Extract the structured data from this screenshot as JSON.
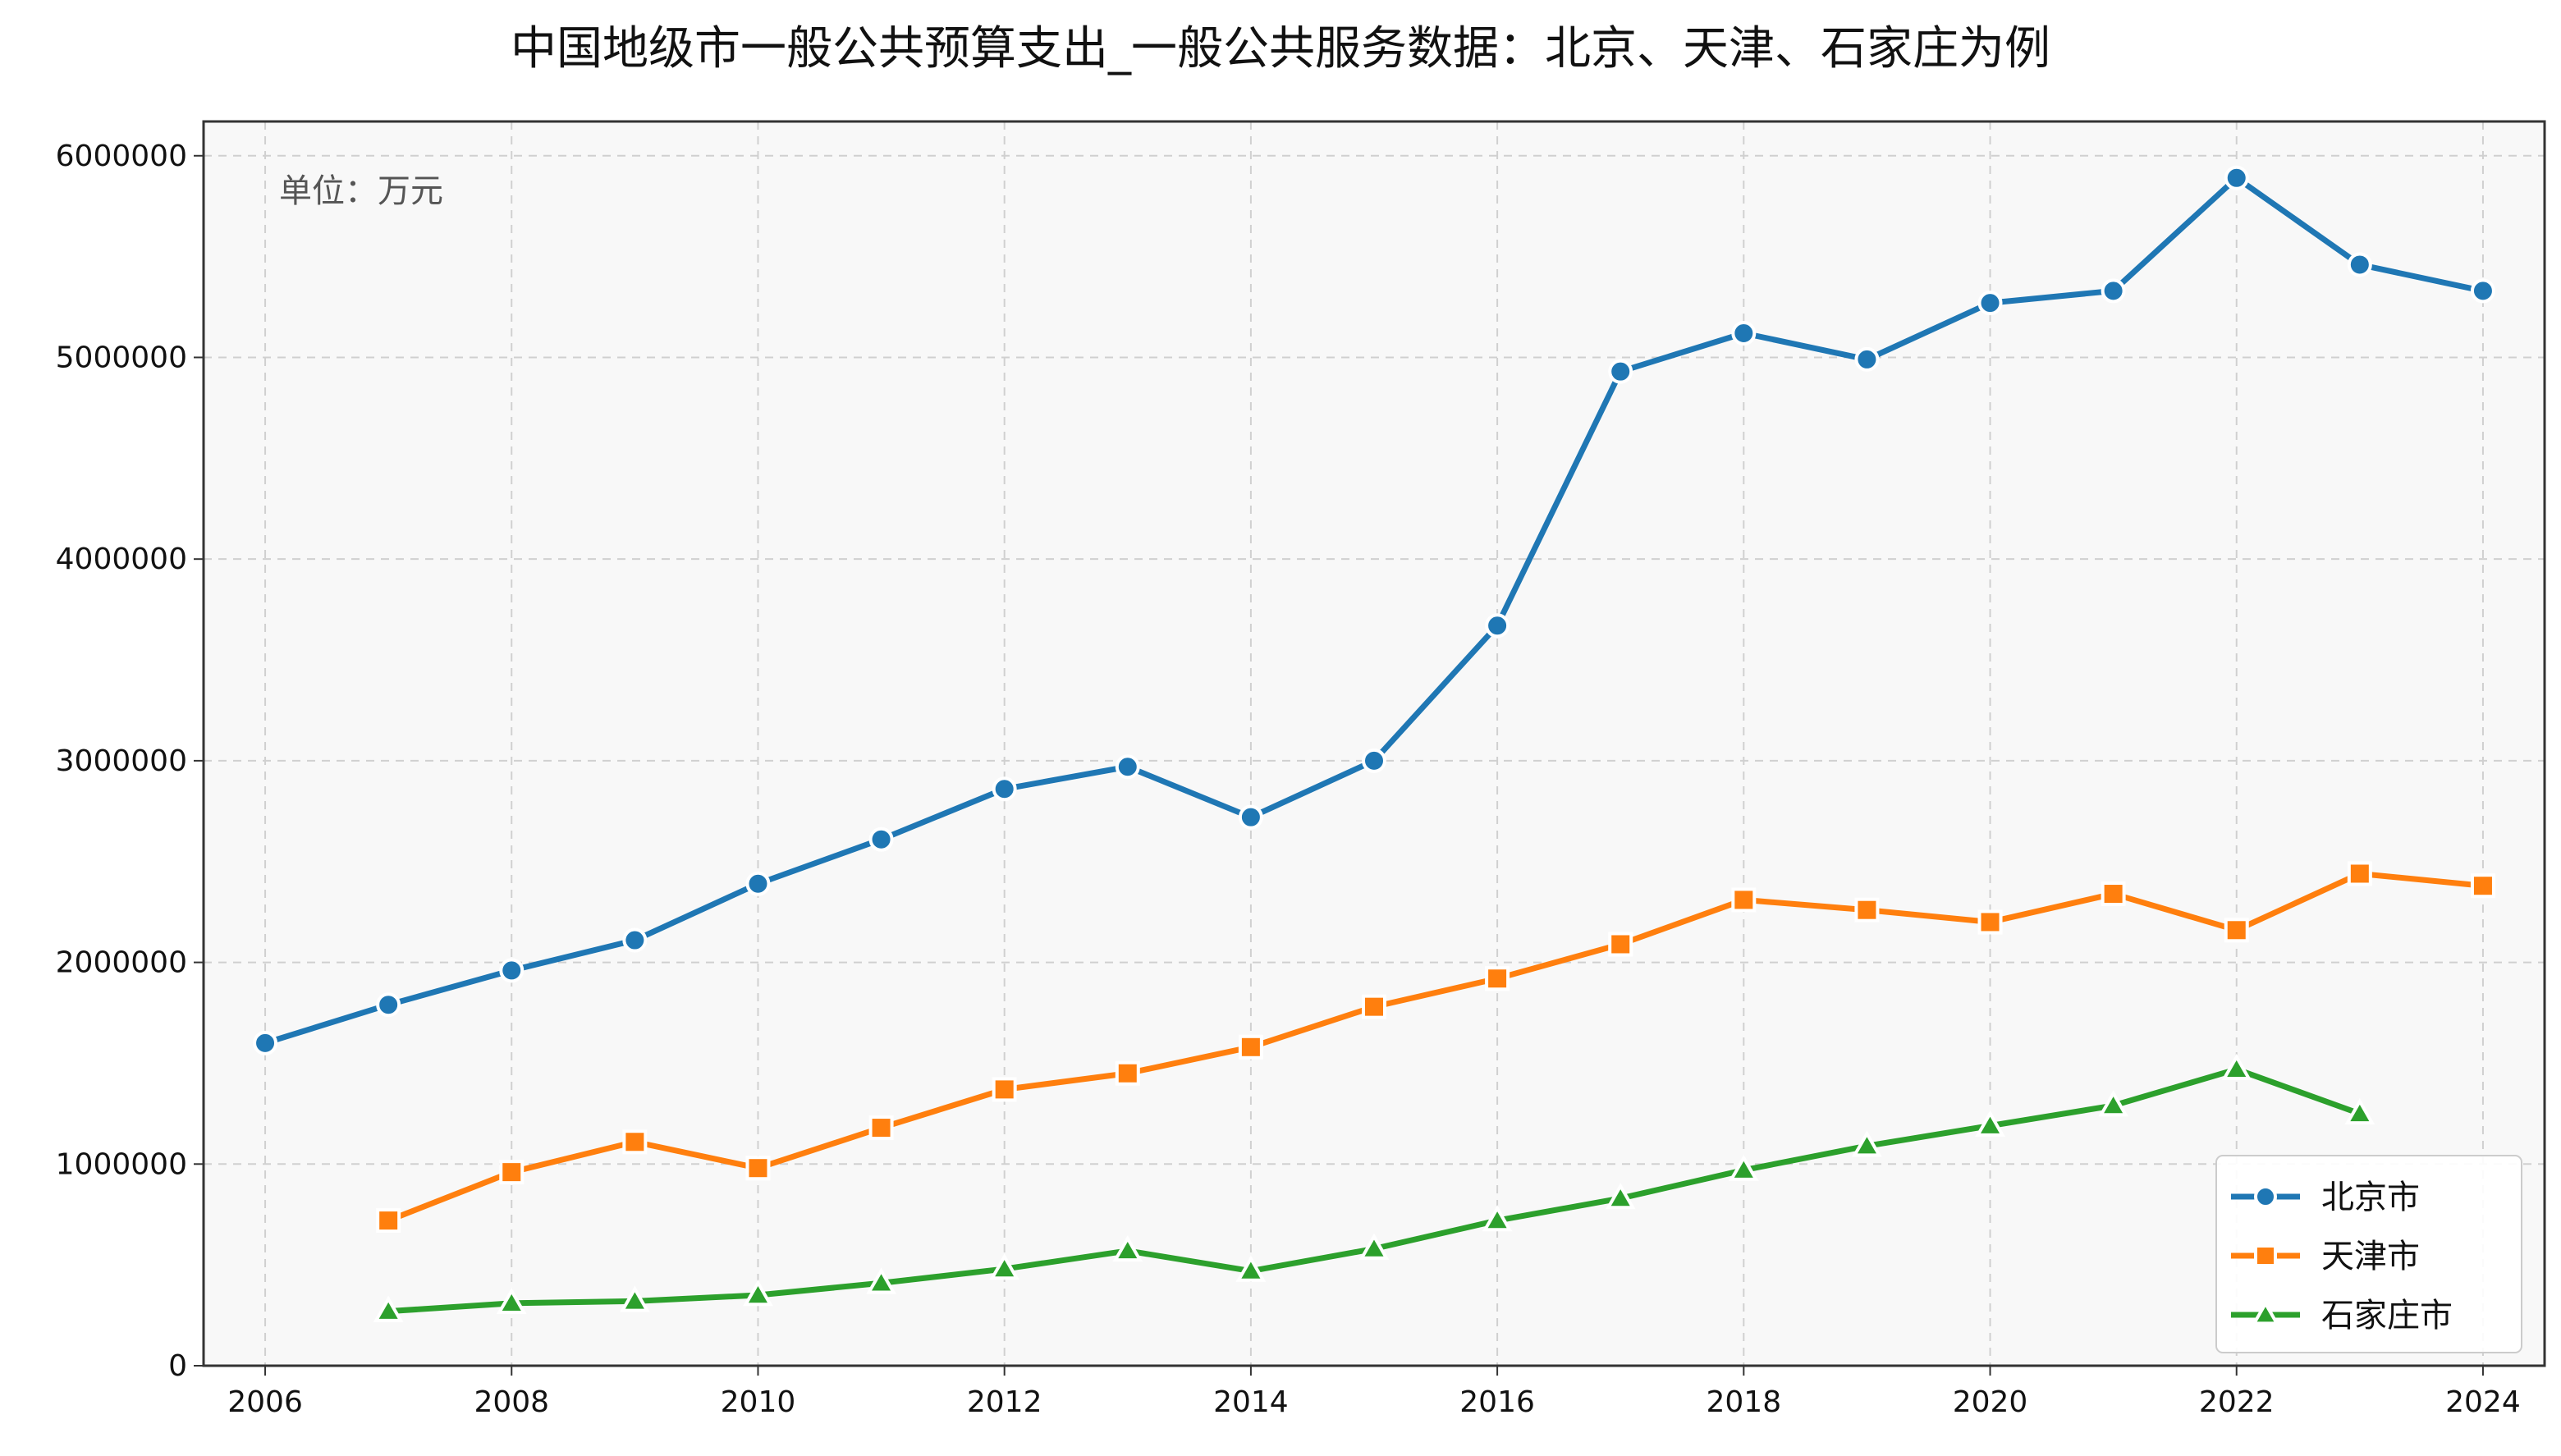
{
  "chart_data": {
    "type": "line",
    "title": "中国地级市一般公共预算支出_一般公共服务数据：北京、天津、石家庄为例",
    "annotation": "单位：万元",
    "xlabel": "",
    "ylabel": "",
    "x": [
      2006,
      2007,
      2008,
      2009,
      2010,
      2011,
      2012,
      2013,
      2014,
      2015,
      2016,
      2017,
      2018,
      2019,
      2020,
      2021,
      2022,
      2023,
      2024
    ],
    "x_ticks": [
      "2006",
      "2008",
      "2010",
      "2012",
      "2014",
      "2016",
      "2018",
      "2020",
      "2022",
      "2024"
    ],
    "y_ticks": [
      "0",
      "1000000",
      "2000000",
      "3000000",
      "4000000",
      "5000000",
      "6000000"
    ],
    "xlim": [
      2005.5,
      2024.5
    ],
    "ylim": [
      0,
      6170000
    ],
    "grid": true,
    "legend_position": "bottom-right",
    "series": [
      {
        "name": "北京市",
        "color": "#1f77b4",
        "marker": "circle",
        "values": [
          1600000,
          1790000,
          1960000,
          2110000,
          2390000,
          2610000,
          2860000,
          2970000,
          2720000,
          3000000,
          3670000,
          4930000,
          5120000,
          4990000,
          5270000,
          5330000,
          5890000,
          5460000,
          5330000
        ]
      },
      {
        "name": "天津市",
        "color": "#ff7f0e",
        "marker": "square",
        "values": [
          null,
          720000,
          960000,
          1110000,
          980000,
          1180000,
          1370000,
          1450000,
          1580000,
          1780000,
          1920000,
          2090000,
          2310000,
          2260000,
          2200000,
          2340000,
          2160000,
          2440000,
          2380000
        ]
      },
      {
        "name": "石家庄市",
        "color": "#2ca02c",
        "marker": "triangle",
        "values": [
          null,
          270000,
          310000,
          320000,
          350000,
          410000,
          480000,
          570000,
          470000,
          580000,
          720000,
          830000,
          970000,
          1090000,
          1190000,
          1290000,
          1470000,
          1250000,
          null
        ]
      }
    ]
  }
}
